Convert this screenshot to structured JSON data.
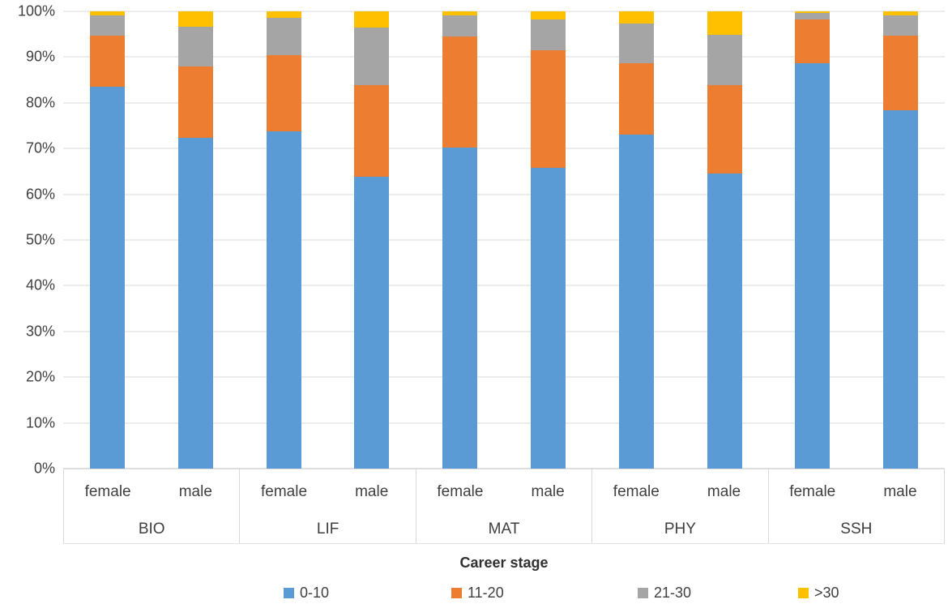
{
  "chart_data": {
    "type": "bar",
    "stacking": "percent",
    "title": "",
    "xlabel": "Career stage",
    "ylabel": "",
    "ylim": [
      0,
      100
    ],
    "grid": true,
    "legend_position": "bottom",
    "y_ticks": [
      "0%",
      "10%",
      "20%",
      "30%",
      "40%",
      "50%",
      "60%",
      "70%",
      "80%",
      "90%",
      "100%"
    ],
    "groups": [
      "BIO",
      "LIF",
      "MAT",
      "PHY",
      "SSH"
    ],
    "subcategories": [
      "female",
      "male"
    ],
    "categories": [
      "BIO female",
      "BIO male",
      "LIF female",
      "LIF male",
      "MAT female",
      "MAT male",
      "PHY female",
      "PHY male",
      "SSH female",
      "SSH male"
    ],
    "series": [
      {
        "name": "0-10",
        "color": "#5B9BD5",
        "values": [
          83.5,
          72.3,
          73.7,
          63.9,
          70.3,
          65.7,
          73.0,
          64.6,
          88.6,
          78.4
        ]
      },
      {
        "name": "11-20",
        "color": "#ED7D31",
        "values": [
          11.2,
          15.6,
          16.7,
          19.9,
          24.2,
          25.8,
          15.6,
          19.3,
          9.6,
          16.2
        ]
      },
      {
        "name": "21-30",
        "color": "#A5A5A5",
        "values": [
          4.4,
          8.7,
          8.1,
          12.6,
          4.7,
          6.7,
          8.7,
          11.0,
          1.5,
          4.6
        ]
      },
      {
        "name": ">30",
        "color": "#FFC000",
        "values": [
          0.9,
          3.4,
          1.5,
          3.6,
          0.8,
          1.8,
          2.7,
          5.1,
          0.3,
          0.8
        ]
      }
    ]
  }
}
